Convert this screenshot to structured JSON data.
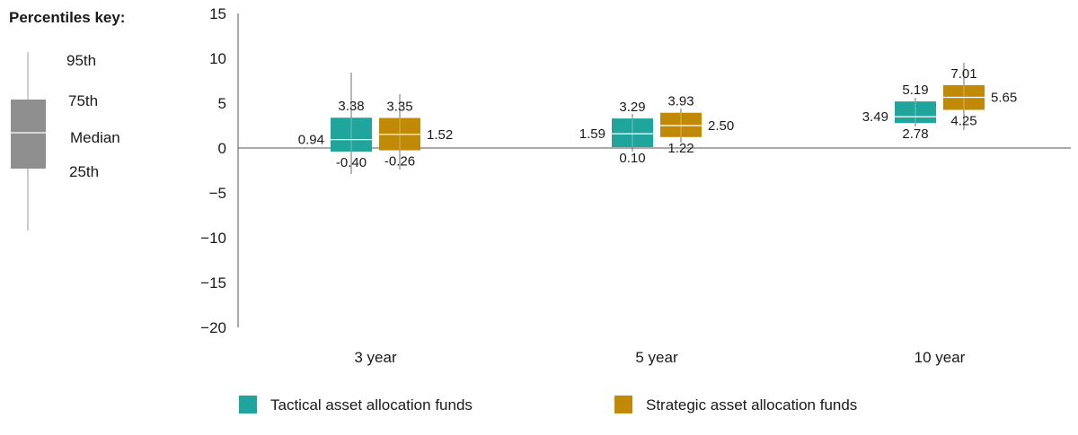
{
  "key": {
    "title": "Percentiles key:",
    "labels": [
      "95th",
      "75th",
      "Median",
      "25th"
    ]
  },
  "chart_data": {
    "type": "box",
    "categories": [
      "3 year",
      "5 year",
      "10 year"
    ],
    "y_ticks": [
      "15",
      "10",
      "5",
      "0",
      "−5",
      "−10",
      "−15",
      "−20"
    ],
    "ylim": [
      -20,
      15
    ],
    "grid": false,
    "legend_position": "bottom",
    "series": [
      {
        "name": "Tactical asset allocation funds",
        "color": "#1fa59b",
        "boxes": [
          {
            "p5": -2.9,
            "p25": -0.4,
            "median": 0.94,
            "p75": 3.38,
            "p95": 8.4
          },
          {
            "p5": -0.4,
            "p25": 0.1,
            "median": 1.59,
            "p75": 3.29,
            "p95": 3.8
          },
          {
            "p5": 2.4,
            "p25": 2.78,
            "median": 3.49,
            "p75": 5.19,
            "p95": 5.6
          }
        ],
        "labels": [
          {
            "p25": "-0.40",
            "median": "0.94",
            "p75": "3.38"
          },
          {
            "p25": "0.10",
            "median": "1.59",
            "p75": "3.29"
          },
          {
            "p25": "2.78",
            "median": "3.49",
            "p75": "5.19"
          }
        ]
      },
      {
        "name": "Strategic asset allocation funds",
        "color": "#c08a07",
        "boxes": [
          {
            "p5": -2.4,
            "p25": -0.26,
            "median": 1.52,
            "p75": 3.35,
            "p95": 6.0
          },
          {
            "p5": 0.6,
            "p25": 1.22,
            "median": 2.5,
            "p75": 3.93,
            "p95": 4.4
          },
          {
            "p5": 2.0,
            "p25": 4.25,
            "median": 5.65,
            "p75": 7.01,
            "p95": 9.5
          }
        ],
        "labels": [
          {
            "p25": "-0.26",
            "median": "1.52",
            "p75": "3.35"
          },
          {
            "p25": "1.22",
            "median": "2.50",
            "p75": "3.93"
          },
          {
            "p25": "4.25",
            "median": "5.65",
            "p75": "7.01"
          }
        ]
      }
    ]
  }
}
